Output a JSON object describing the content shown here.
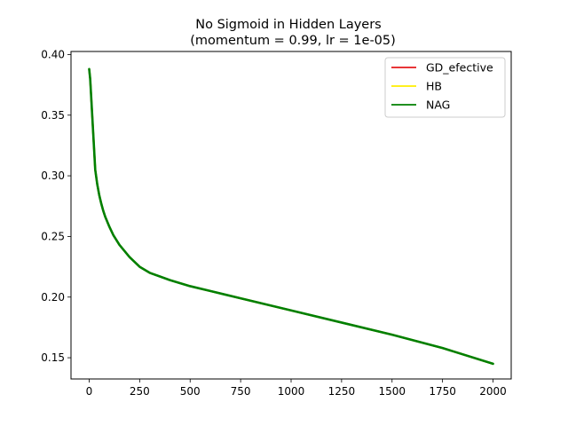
{
  "chart_data": {
    "type": "line",
    "title": "No Sigmoid in Hidden Layers",
    "subtitle": "(momentum = 0.99, lr = 1e-05)",
    "xlabel": "",
    "ylabel": "",
    "xlim": [
      -90,
      2090
    ],
    "ylim": [
      0.1325,
      0.4025
    ],
    "xticks": [
      0,
      250,
      500,
      750,
      1000,
      1250,
      1500,
      1750,
      2000
    ],
    "yticks": [
      0.15,
      0.2,
      0.25,
      0.3,
      0.35,
      0.4
    ],
    "ytick_labels": [
      "0.15",
      "0.20",
      "0.25",
      "0.30",
      "0.35",
      "0.40"
    ],
    "grid": false,
    "legend": {
      "placement": "top-right"
    },
    "series": [
      {
        "name": "GD_efective",
        "color": "#e41a1c",
        "x": [
          0,
          5,
          10,
          15,
          20,
          25,
          30,
          40,
          50,
          60,
          70,
          80,
          100,
          120,
          150,
          200,
          250,
          300,
          350,
          400,
          500,
          600,
          750,
          1000,
          1250,
          1500,
          1750,
          2000
        ],
        "y": [
          0.388,
          0.38,
          0.365,
          0.35,
          0.335,
          0.32,
          0.305,
          0.293,
          0.284,
          0.277,
          0.271,
          0.266,
          0.258,
          0.251,
          0.243,
          0.233,
          0.225,
          0.22,
          0.217,
          0.214,
          0.209,
          0.205,
          0.199,
          0.189,
          0.179,
          0.169,
          0.158,
          0.145
        ]
      },
      {
        "name": "HB",
        "color": "#ffee00",
        "x": [
          0,
          5,
          10,
          15,
          20,
          25,
          30,
          40,
          50,
          60,
          70,
          80,
          100,
          120,
          150,
          200,
          250,
          300,
          350,
          400,
          500,
          600,
          750,
          1000,
          1250,
          1500,
          1750,
          2000
        ],
        "y": [
          0.388,
          0.38,
          0.365,
          0.35,
          0.335,
          0.32,
          0.305,
          0.293,
          0.284,
          0.277,
          0.271,
          0.266,
          0.258,
          0.251,
          0.243,
          0.233,
          0.225,
          0.22,
          0.217,
          0.214,
          0.209,
          0.205,
          0.199,
          0.189,
          0.179,
          0.169,
          0.158,
          0.145
        ]
      },
      {
        "name": "NAG",
        "color": "#008000",
        "x": [
          0,
          5,
          10,
          15,
          20,
          25,
          30,
          40,
          50,
          60,
          70,
          80,
          100,
          120,
          150,
          200,
          250,
          300,
          350,
          400,
          500,
          600,
          750,
          1000,
          1250,
          1500,
          1750,
          2000
        ],
        "y": [
          0.388,
          0.38,
          0.365,
          0.35,
          0.335,
          0.32,
          0.305,
          0.293,
          0.284,
          0.277,
          0.271,
          0.266,
          0.258,
          0.251,
          0.243,
          0.233,
          0.225,
          0.22,
          0.217,
          0.214,
          0.209,
          0.205,
          0.199,
          0.189,
          0.179,
          0.169,
          0.158,
          0.145
        ]
      }
    ]
  }
}
